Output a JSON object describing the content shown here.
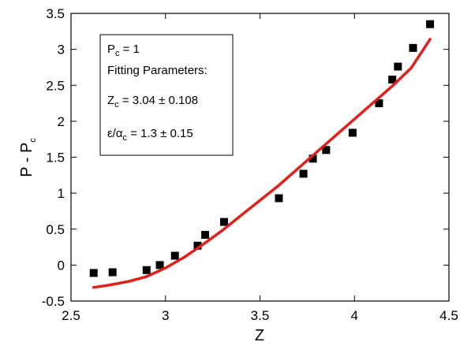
{
  "chart_data": {
    "type": "scatter",
    "xlabel": "Z",
    "ylabel": {
      "main": "P - P",
      "sub": "c"
    },
    "xlim": [
      2.5,
      4.5
    ],
    "ylim": [
      -0.5,
      3.5
    ],
    "xticks": [
      "2.5",
      "3",
      "3.5",
      "4",
      "4.5"
    ],
    "yticks": [
      "-0.5",
      "0",
      "0.5",
      "1",
      "1.5",
      "2",
      "2.5",
      "3",
      "3.5"
    ],
    "grid": false,
    "series": [
      {
        "marker": "square",
        "color": "#000000",
        "points": [
          [
            2.62,
            -0.11
          ],
          [
            2.72,
            -0.1
          ],
          [
            2.9,
            -0.07
          ],
          [
            2.97,
            0.0
          ],
          [
            3.05,
            0.13
          ],
          [
            3.17,
            0.27
          ],
          [
            3.21,
            0.42
          ],
          [
            3.31,
            0.6
          ],
          [
            3.6,
            0.93
          ],
          [
            3.73,
            1.27
          ],
          [
            3.78,
            1.48
          ],
          [
            3.85,
            1.6
          ],
          [
            3.99,
            1.84
          ],
          [
            4.13,
            2.25
          ],
          [
            4.2,
            2.58
          ],
          [
            4.23,
            2.76
          ],
          [
            4.31,
            3.02
          ],
          [
            4.4,
            3.35
          ]
        ]
      },
      {
        "line": true,
        "color": "#e0201c",
        "points": [
          [
            2.62,
            -0.31
          ],
          [
            2.7,
            -0.28
          ],
          [
            2.8,
            -0.23
          ],
          [
            2.9,
            -0.16
          ],
          [
            3.0,
            -0.04
          ],
          [
            3.1,
            0.11
          ],
          [
            3.2,
            0.29
          ],
          [
            3.3,
            0.48
          ],
          [
            3.4,
            0.69
          ],
          [
            3.5,
            0.9
          ],
          [
            3.6,
            1.11
          ],
          [
            3.7,
            1.34
          ],
          [
            3.8,
            1.57
          ],
          [
            3.9,
            1.8
          ],
          [
            4.0,
            2.03
          ],
          [
            4.1,
            2.26
          ],
          [
            4.2,
            2.49
          ],
          [
            4.3,
            2.74
          ],
          [
            4.4,
            3.14
          ]
        ]
      }
    ],
    "annotation": {
      "pc_main": "P",
      "pc_sub": "c",
      "pc_rest": " = 1",
      "fit_title": "Fitting Parameters:",
      "zc_main": "Z",
      "zc_sub": "c",
      "zc_rest": " = 3.04 ± 0.108",
      "eps_main": "ε/α",
      "eps_sub": "c",
      "eps_rest": " = 1.3 ± 0.15"
    }
  }
}
